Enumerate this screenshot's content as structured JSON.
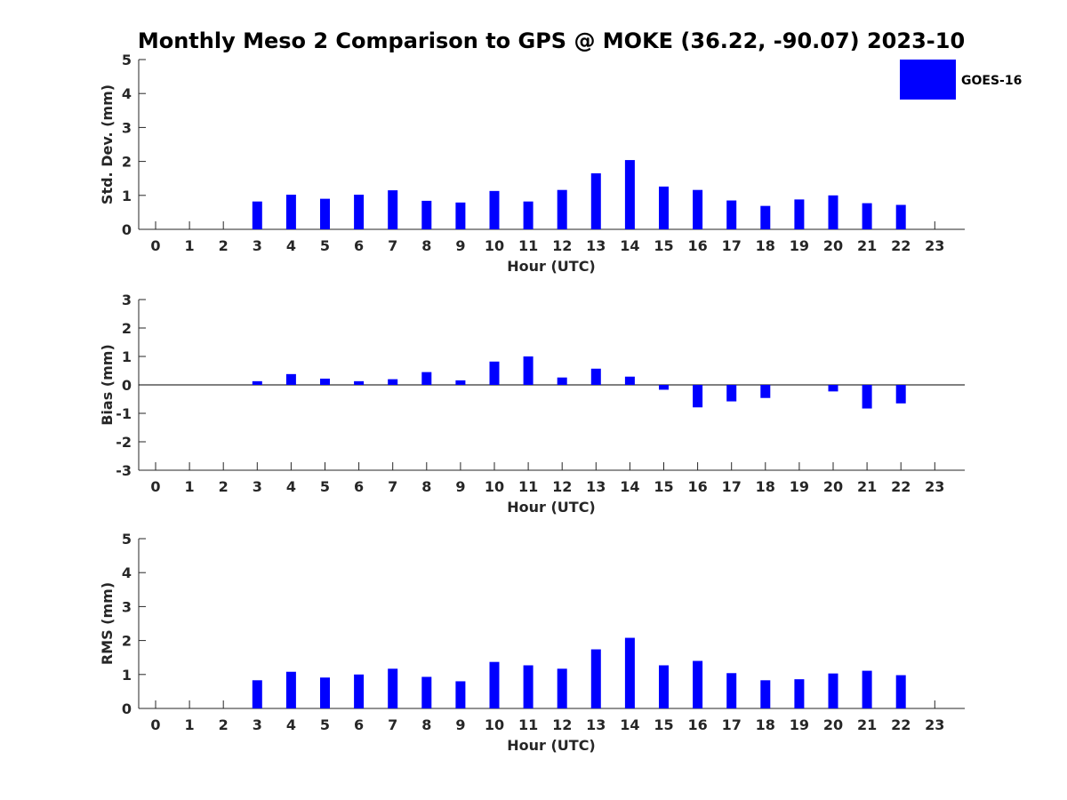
{
  "title": "Monthly Meso 2 Comparison to GPS @ MOKE (36.22, -90.07) 2023-10",
  "legend": {
    "label": "GOES-16",
    "color": "#0000ff",
    "placement": "top-right"
  },
  "chart_data": [
    {
      "type": "bar",
      "ylabel": "Std. Dev. (mm)",
      "xlabel": "Hour (UTC)",
      "ylim": [
        0,
        5
      ],
      "yticks": [
        0,
        1,
        2,
        3,
        4,
        5
      ],
      "categories": [
        "0",
        "1",
        "2",
        "3",
        "4",
        "5",
        "6",
        "7",
        "8",
        "9",
        "10",
        "11",
        "12",
        "13",
        "14",
        "15",
        "16",
        "17",
        "18",
        "19",
        "20",
        "21",
        "22",
        "23"
      ],
      "series": [
        {
          "name": "GOES-16",
          "values": [
            null,
            null,
            null,
            0.82,
            1.02,
            0.9,
            1.02,
            1.15,
            0.84,
            0.79,
            1.13,
            0.82,
            1.16,
            1.65,
            2.04,
            1.26,
            1.16,
            0.85,
            0.69,
            0.88,
            1.0,
            0.77,
            0.72,
            null
          ]
        }
      ]
    },
    {
      "type": "bar",
      "ylabel": "Bias (mm)",
      "xlabel": "Hour (UTC)",
      "ylim": [
        -3,
        3
      ],
      "yticks": [
        -3,
        -2,
        -1,
        0,
        1,
        2,
        3
      ],
      "categories": [
        "0",
        "1",
        "2",
        "3",
        "4",
        "5",
        "6",
        "7",
        "8",
        "9",
        "10",
        "11",
        "12",
        "13",
        "14",
        "15",
        "16",
        "17",
        "18",
        "19",
        "20",
        "21",
        "22",
        "23"
      ],
      "series": [
        {
          "name": "GOES-16",
          "values": [
            null,
            null,
            null,
            0.13,
            0.38,
            0.22,
            0.13,
            0.2,
            0.45,
            0.16,
            0.82,
            1.0,
            0.26,
            0.57,
            0.29,
            -0.17,
            -0.79,
            -0.58,
            -0.46,
            null,
            -0.23,
            -0.83,
            -0.65,
            null
          ]
        }
      ]
    },
    {
      "type": "bar",
      "ylabel": "RMS (mm)",
      "xlabel": "Hour (UTC)",
      "ylim": [
        0,
        5
      ],
      "yticks": [
        0,
        1,
        2,
        3,
        4,
        5
      ],
      "categories": [
        "0",
        "1",
        "2",
        "3",
        "4",
        "5",
        "6",
        "7",
        "8",
        "9",
        "10",
        "11",
        "12",
        "13",
        "14",
        "15",
        "16",
        "17",
        "18",
        "19",
        "20",
        "21",
        "22",
        "23"
      ],
      "series": [
        {
          "name": "GOES-16",
          "values": [
            null,
            null,
            null,
            0.83,
            1.08,
            0.91,
            1.0,
            1.17,
            0.93,
            0.8,
            1.37,
            1.27,
            1.17,
            1.74,
            2.08,
            1.27,
            1.4,
            1.04,
            0.83,
            0.86,
            1.03,
            1.11,
            0.98,
            null
          ]
        }
      ]
    }
  ]
}
